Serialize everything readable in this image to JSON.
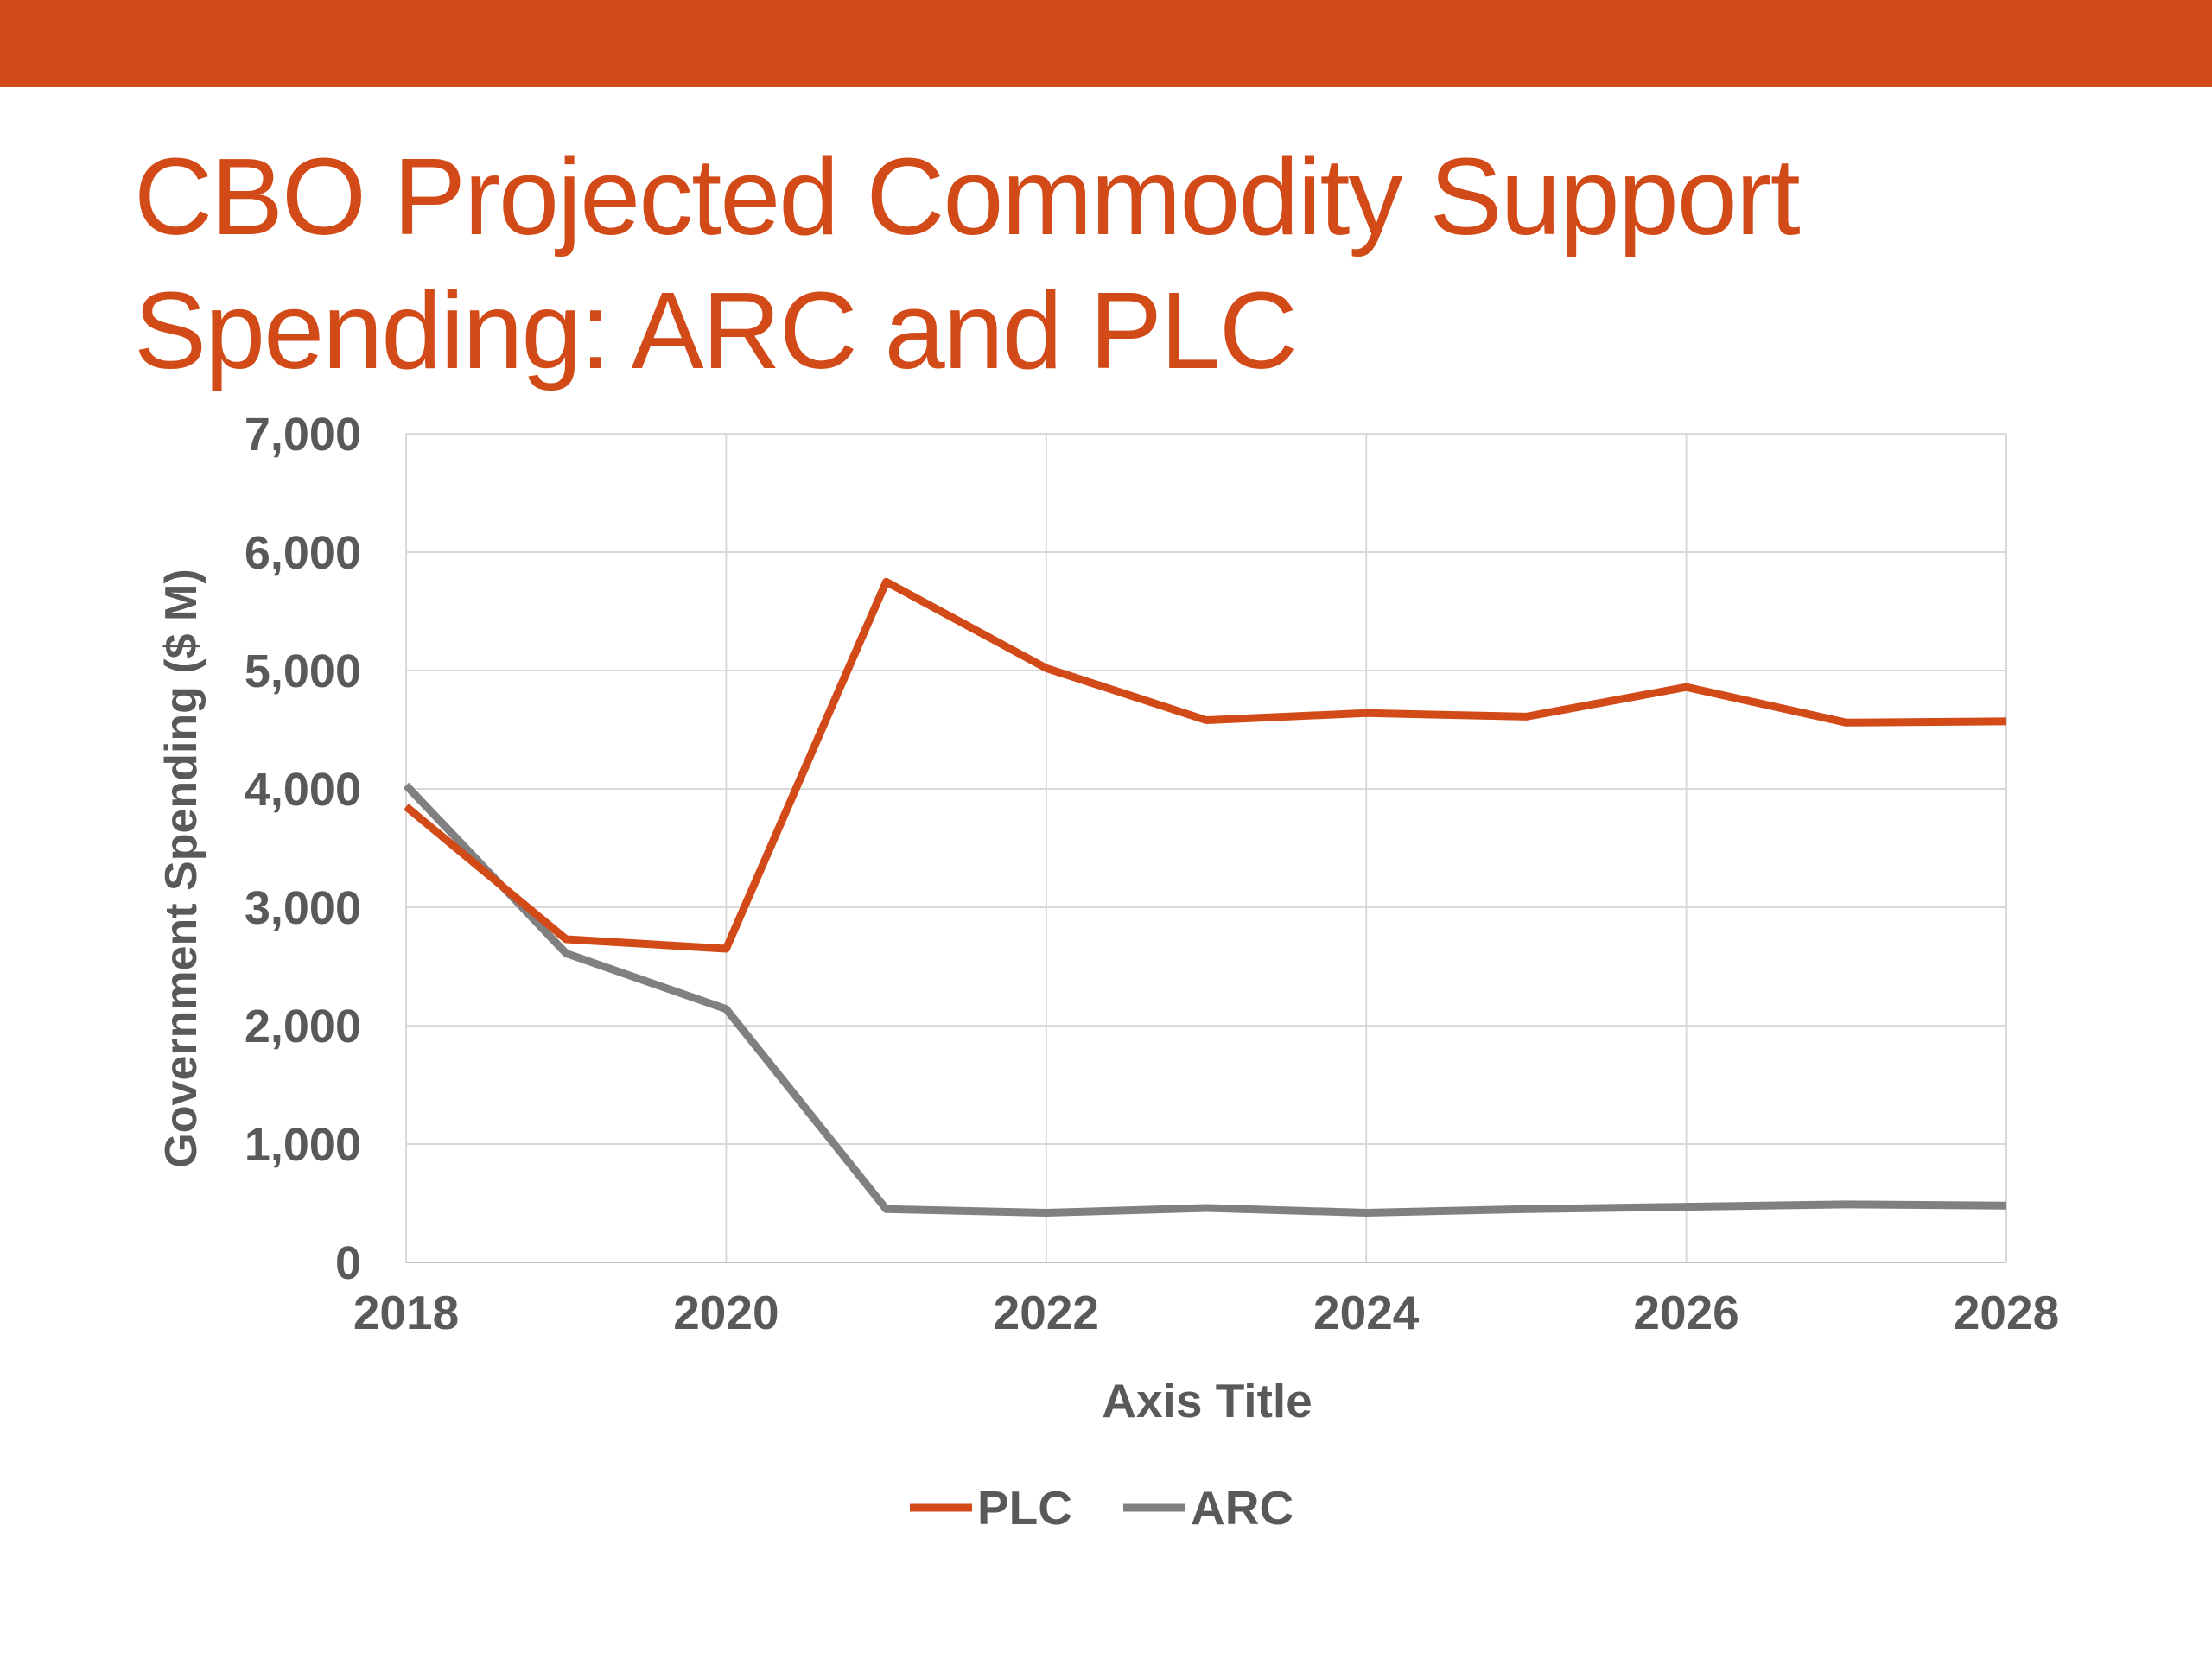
{
  "slide": {
    "title_line1": "CBO Projected Commodity Support",
    "title_line2": "Spending: ARC and PLC",
    "title_color": "#D24A18",
    "accent_bar_color": "#D24A18"
  },
  "chart_data": {
    "type": "line",
    "title": "",
    "xlabel": "Axis Title",
    "ylabel": "Government Spending ($ M)",
    "xlim": [
      2018,
      2028
    ],
    "ylim": [
      0,
      7000
    ],
    "x_ticks": [
      "2018",
      "2020",
      "2022",
      "2024",
      "2026",
      "2028"
    ],
    "y_ticks": [
      "0",
      "1,000",
      "2,000",
      "3,000",
      "4,000",
      "5,000",
      "6,000",
      "7,000"
    ],
    "grid": true,
    "legend_position": "bottom",
    "x": [
      2018,
      2019,
      2020,
      2021,
      2022,
      2023,
      2024,
      2025,
      2026,
      2027,
      2028
    ],
    "series": [
      {
        "name": "PLC",
        "color": "#D24A18",
        "values": [
          3850,
          2730,
          2650,
          5750,
          5020,
          4580,
          4640,
          4610,
          4860,
          4560,
          4570
        ]
      },
      {
        "name": "ARC",
        "color": "#808080",
        "values": [
          4030,
          2610,
          2140,
          450,
          420,
          460,
          420,
          450,
          470,
          490,
          480
        ]
      }
    ]
  }
}
